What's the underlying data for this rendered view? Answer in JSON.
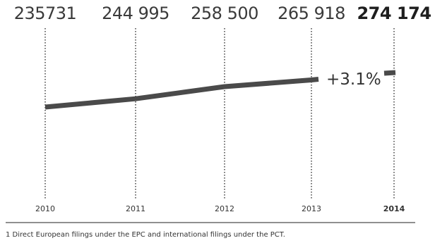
{
  "chart_data": {
    "type": "line",
    "categories": [
      "2010",
      "2011",
      "2012",
      "2013",
      "2014"
    ],
    "values": [
      235731,
      244995,
      258500,
      265918,
      274174
    ],
    "value_labels": [
      "235731",
      "244 995",
      "258 500",
      "265 918",
      "274 174"
    ],
    "highlight_index": 4,
    "annotation": "+3.1%",
    "footnote": "1  Direct European filings under the EPC and international filings under the PCT.",
    "grid": "dotted vertical lines",
    "colors": {
      "line": "#4a4a4a",
      "grid": "#222222",
      "axis": "#222222",
      "text": "#333333"
    }
  }
}
